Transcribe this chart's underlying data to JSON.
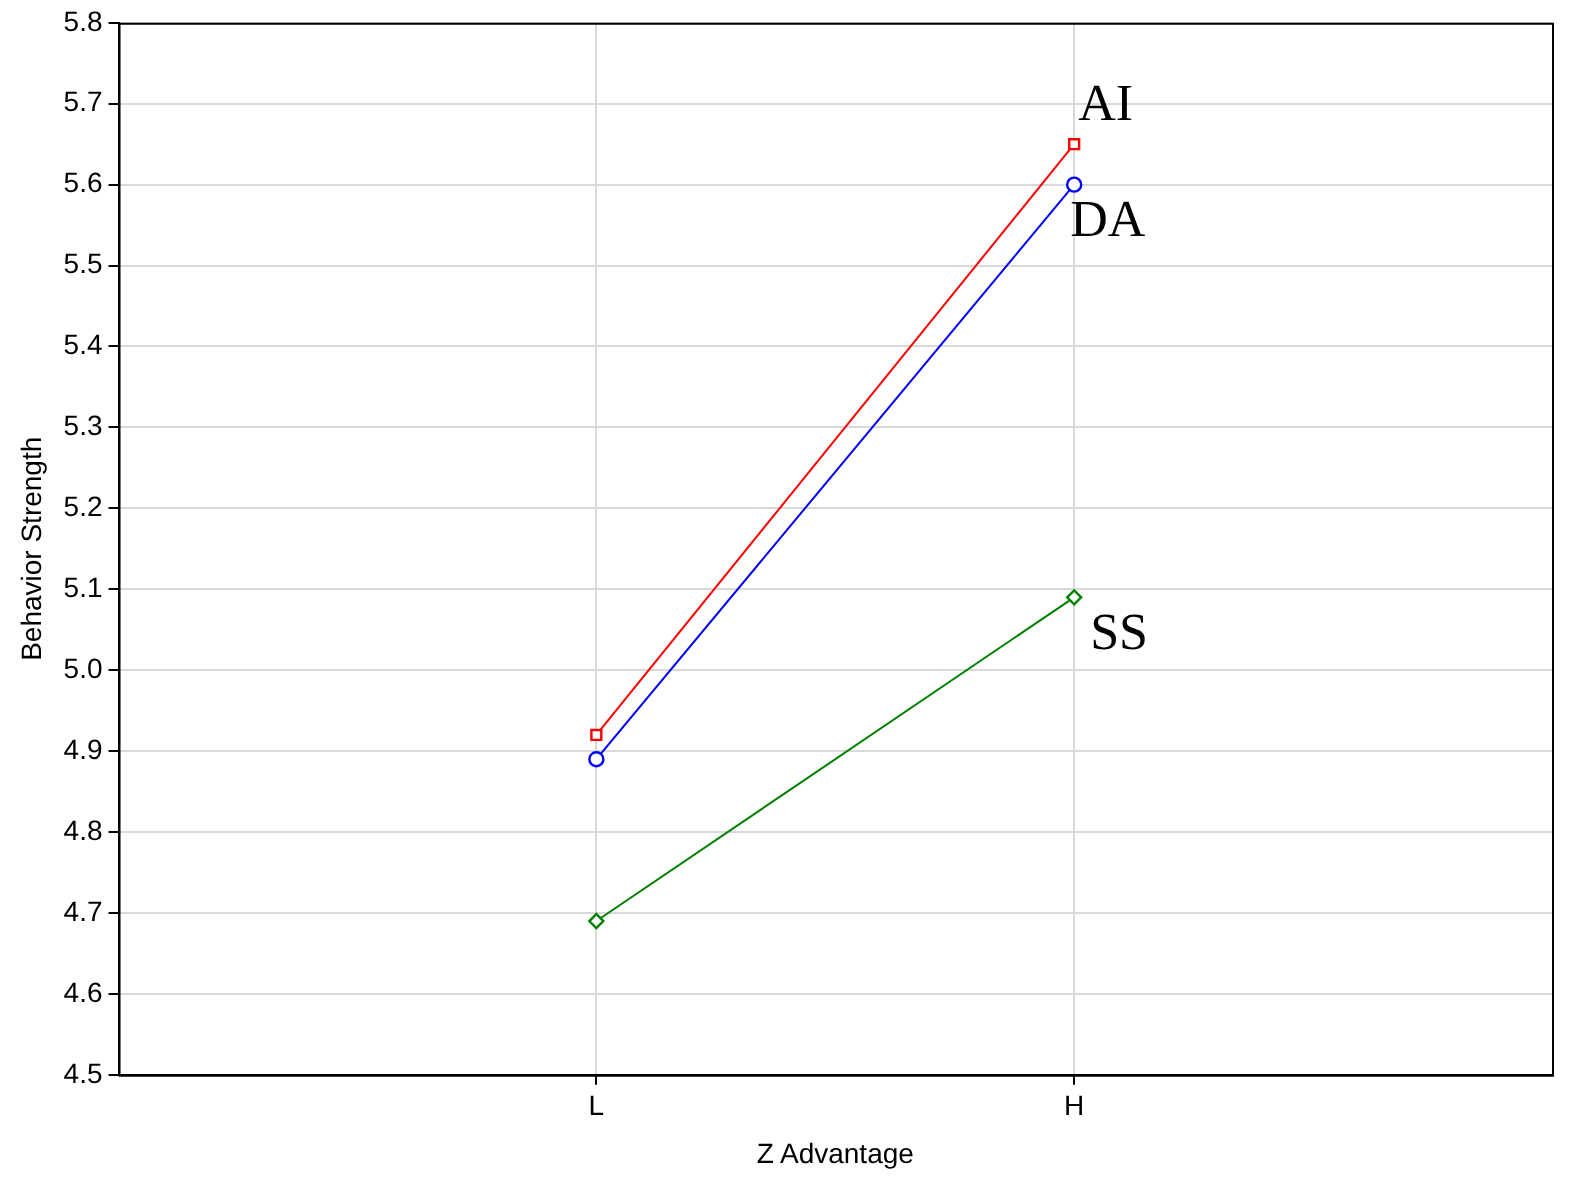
{
  "chart_data": {
    "type": "line",
    "xlabel": "Z Advantage",
    "ylabel": "Behavior Strength",
    "categories": [
      "L",
      "H"
    ],
    "series": [
      {
        "name": "AI",
        "color": "#ff0000",
        "marker": "square",
        "values": [
          4.92,
          5.65
        ]
      },
      {
        "name": "DA",
        "color": "#0000ff",
        "marker": "circle",
        "values": [
          4.89,
          5.6
        ]
      },
      {
        "name": "SS",
        "color": "#008000",
        "marker": "diamond",
        "values": [
          4.69,
          5.09
        ]
      }
    ],
    "ylim": [
      4.5,
      5.8
    ],
    "yticks": [
      {
        "value": 4.5,
        "label": "4.5"
      },
      {
        "value": 4.6,
        "label": "4.6"
      },
      {
        "value": 4.7,
        "label": "4.7"
      },
      {
        "value": 4.8,
        "label": "4.8"
      },
      {
        "value": 4.9,
        "label": "4.9"
      },
      {
        "value": 5.0,
        "label": "5.0"
      },
      {
        "value": 5.1,
        "label": "5.1"
      },
      {
        "value": 5.2,
        "label": "5.2"
      },
      {
        "value": 5.3,
        "label": "5.3"
      },
      {
        "value": 5.4,
        "label": "5.4"
      },
      {
        "value": 5.5,
        "label": "5.5"
      },
      {
        "value": 5.6,
        "label": "5.6"
      },
      {
        "value": 5.7,
        "label": "5.7"
      },
      {
        "value": 5.8,
        "label": "5.8"
      }
    ],
    "grid": true,
    "legend": false
  }
}
